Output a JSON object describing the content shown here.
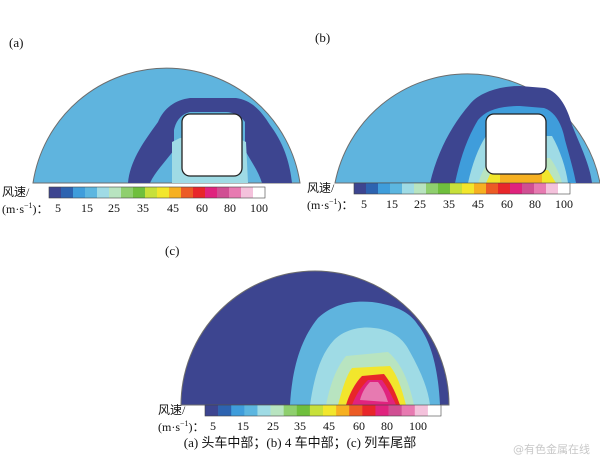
{
  "panels": [
    {
      "label": "(a)"
    },
    {
      "label": "(b)"
    },
    {
      "label": "(c)"
    }
  ],
  "legend": {
    "quantity": "风速/",
    "unit_prefix": "(m·s",
    "unit_exp": "−1",
    "unit_suffix": ")：",
    "ticks": [
      "5",
      "15",
      "25",
      "35",
      "45",
      "60",
      "80",
      "100"
    ],
    "colors": [
      "#3d4590",
      "#2d63b0",
      "#3f9ddb",
      "#5cb6e0",
      "#9fdbe5",
      "#b8e4c0",
      "#8fcf6e",
      "#6fbf3d",
      "#c7e03a",
      "#f2e62c",
      "#f6b021",
      "#ec5b25",
      "#e8262a",
      "#e0237e",
      "#d04f93",
      "#e77ab1",
      "#f4c2dc",
      "#ffffff"
    ]
  },
  "caption": "(a) 头车中部；(b) 4 车中部；(c) 列车尾部",
  "watermark": "@有色金属在线"
}
